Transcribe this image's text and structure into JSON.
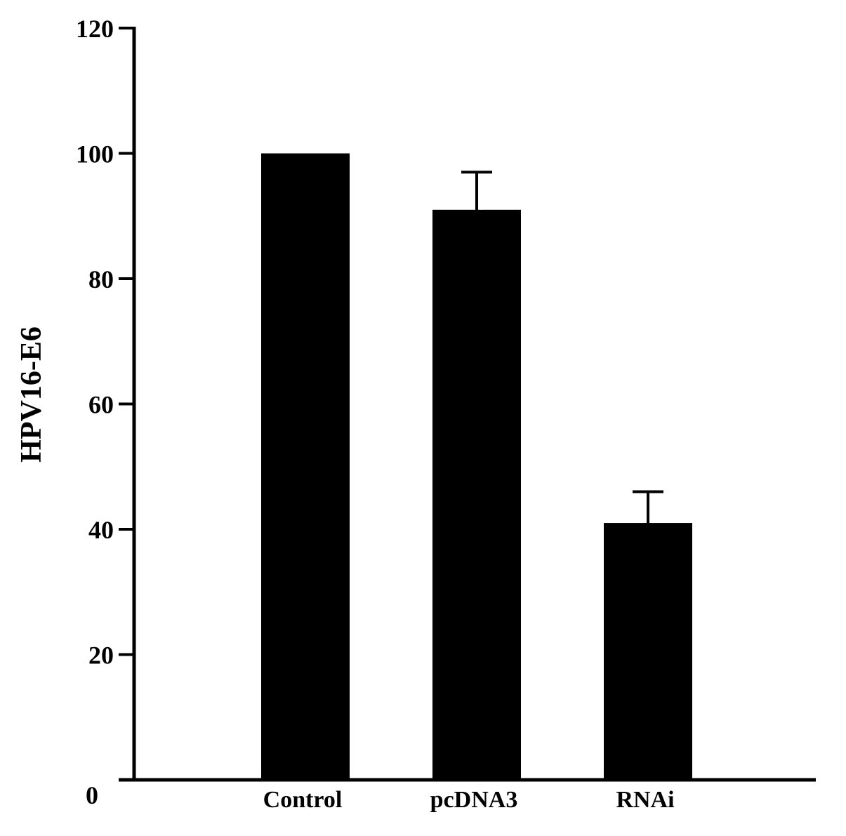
{
  "chart_data": {
    "type": "bar",
    "title": "",
    "xlabel": "",
    "ylabel": "HPV16-E6",
    "ylim": [
      0,
      120
    ],
    "yticks": [
      0,
      20,
      40,
      60,
      80,
      100,
      120
    ],
    "ytick_labels": [
      "0",
      "20",
      "40",
      "60",
      "80",
      "100",
      "120"
    ],
    "categories": [
      "Control",
      "pcDNA3",
      "RNAi"
    ],
    "values": [
      100,
      91,
      41
    ],
    "error_upper": [
      0,
      6,
      5
    ],
    "grid": false,
    "legend": "none",
    "bar_color": "#000000",
    "axis_color": "#000000"
  }
}
